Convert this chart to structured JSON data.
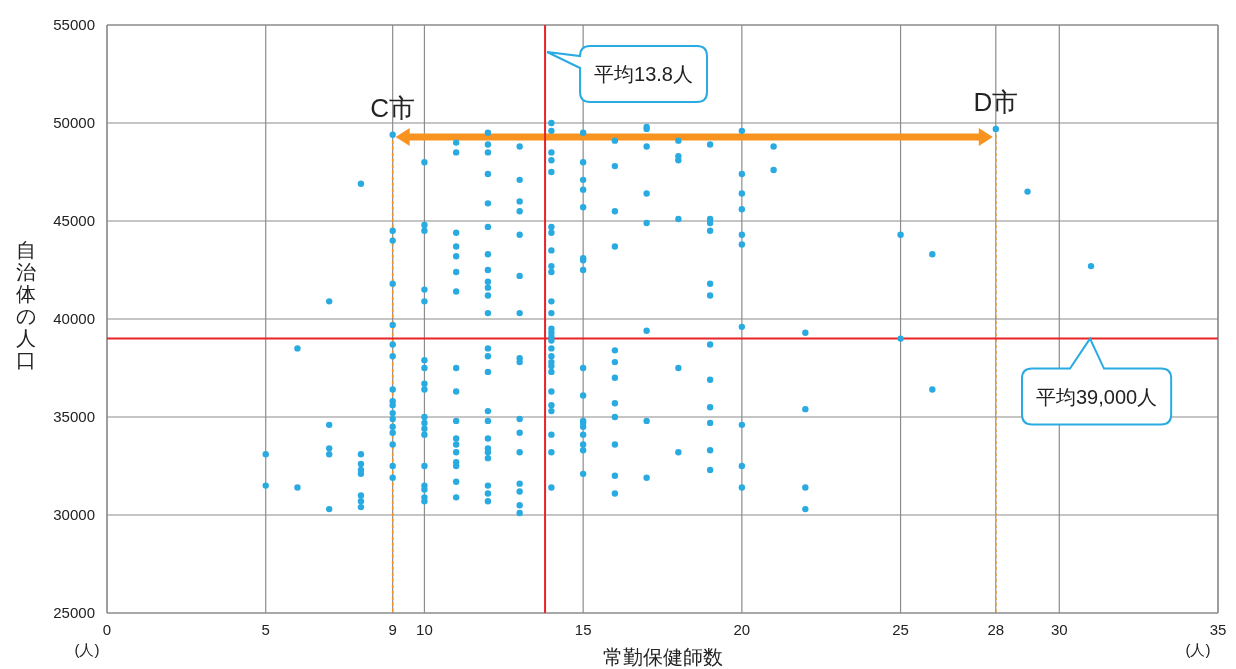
{
  "chart_data": {
    "type": "scatter",
    "xlabel": "常勤保健師数",
    "ylabel": "自治体の人口",
    "xlim": [
      0,
      35
    ],
    "ylim": [
      25000,
      55000
    ],
    "xticks": [
      0,
      5,
      9,
      10,
      15,
      20,
      25,
      28,
      30,
      35
    ],
    "yticks": [
      25000,
      30000,
      35000,
      40000,
      45000,
      50000,
      55000
    ],
    "grid": true,
    "marker": "circle",
    "series": [
      {
        "color": "#29abe2",
        "x": [
          5,
          5,
          6,
          6,
          7,
          7,
          7,
          7,
          7,
          8,
          8,
          8,
          8,
          8,
          8,
          8,
          8,
          9,
          9,
          9,
          9,
          9,
          9,
          9,
          9,
          9,
          9,
          9,
          9,
          9,
          9,
          9,
          9,
          9,
          10,
          10,
          10,
          10,
          10,
          10,
          10,
          10,
          10,
          10,
          10,
          10,
          10,
          10,
          10,
          10,
          10,
          10,
          11,
          11,
          11,
          11,
          11,
          11,
          11,
          11,
          11,
          11,
          11,
          11,
          11,
          11,
          11,
          11,
          11,
          12,
          12,
          12,
          12,
          12,
          12,
          12,
          12,
          12,
          12,
          12,
          12,
          12,
          12,
          12,
          12,
          12,
          12,
          12,
          12,
          12,
          12,
          12,
          12,
          13,
          13,
          13,
          13,
          13,
          13,
          13,
          13,
          13,
          13,
          13,
          13,
          13,
          13,
          13,
          13,
          14,
          14,
          14,
          14,
          14,
          14,
          14,
          14,
          14,
          14,
          14,
          14,
          14,
          14,
          14,
          14,
          14,
          14,
          14,
          14,
          14,
          14,
          14,
          14,
          14,
          14,
          14,
          15,
          15,
          15,
          15,
          15,
          15,
          15,
          15,
          15,
          15,
          15,
          15,
          15,
          15,
          15,
          15,
          15,
          16,
          16,
          16,
          16,
          16,
          16,
          16,
          16,
          16,
          16,
          16,
          16,
          17,
          17,
          17,
          17,
          17,
          17,
          17,
          17,
          18,
          18,
          18,
          18,
          18,
          18,
          19,
          19,
          19,
          19,
          19,
          19,
          19,
          19,
          19,
          19,
          19,
          19,
          20,
          20,
          20,
          20,
          20,
          20,
          20,
          20,
          20,
          20,
          21,
          21,
          22,
          22,
          22,
          22,
          25,
          25,
          26,
          26,
          28,
          29,
          31
        ],
        "values": [
          33100,
          31500,
          38500,
          31400,
          40900,
          34600,
          33400,
          33100,
          30300,
          46900,
          33100,
          32600,
          32300,
          32100,
          31000,
          30700,
          30400,
          49400,
          44500,
          44000,
          41800,
          39700,
          38700,
          38100,
          36400,
          35800,
          35600,
          35200,
          34900,
          34500,
          34200,
          33600,
          32500,
          31900,
          48000,
          44800,
          44500,
          41500,
          40900,
          37900,
          37500,
          36700,
          36400,
          35000,
          34700,
          34400,
          34100,
          32500,
          31500,
          31300,
          30900,
          30700,
          49000,
          48500,
          44400,
          43700,
          43200,
          42400,
          41400,
          37500,
          36300,
          34800,
          33900,
          33600,
          33200,
          32700,
          32500,
          31700,
          30900,
          49500,
          48900,
          48500,
          47400,
          45900,
          44700,
          43300,
          42500,
          41900,
          41600,
          41200,
          40300,
          38500,
          38100,
          37300,
          35300,
          34800,
          33900,
          33400,
          33200,
          32900,
          31500,
          31100,
          30700,
          48800,
          47100,
          46000,
          45500,
          44300,
          42200,
          40300,
          38000,
          37800,
          34900,
          34200,
          33200,
          31600,
          31200,
          30500,
          30100,
          50000,
          49600,
          48500,
          48100,
          47500,
          44700,
          44400,
          43500,
          42700,
          42400,
          40900,
          40300,
          39500,
          39300,
          39100,
          38900,
          38500,
          38100,
          37800,
          37600,
          37300,
          36300,
          35600,
          35300,
          34100,
          33200,
          31400,
          49500,
          48000,
          47100,
          46600,
          45700,
          43100,
          43000,
          42500,
          37500,
          36100,
          34800,
          34700,
          34500,
          34100,
          33600,
          33300,
          32100,
          49100,
          47800,
          45500,
          43700,
          38400,
          37800,
          37000,
          35700,
          35000,
          33600,
          32000,
          31100,
          49800,
          49700,
          48800,
          46400,
          44900,
          39400,
          34800,
          31900,
          49100,
          48300,
          48100,
          45100,
          37500,
          33200,
          48900,
          45100,
          44900,
          44500,
          41800,
          41200,
          38700,
          36900,
          35500,
          34700,
          33300,
          32300,
          49600,
          47400,
          46400,
          45600,
          44300,
          43800,
          39600,
          34600,
          32500,
          31400,
          48800,
          47600,
          39300,
          35400,
          31400,
          30300,
          44300,
          39000,
          43300,
          36400,
          49700,
          46500,
          42700
        ]
      }
    ],
    "ref_lines": [
      {
        "axis": "x",
        "value": 13.8,
        "label": "平均13.8人",
        "color": "#e8232a"
      },
      {
        "axis": "y",
        "value": 39000,
        "label": "平均39,000人",
        "color": "#e8232a"
      }
    ],
    "annotations": [
      {
        "text": "C市",
        "x": 9,
        "y": 49400
      },
      {
        "text": "D市",
        "x": 28,
        "y": 49700
      },
      "(人)",
      "(人)"
    ]
  }
}
